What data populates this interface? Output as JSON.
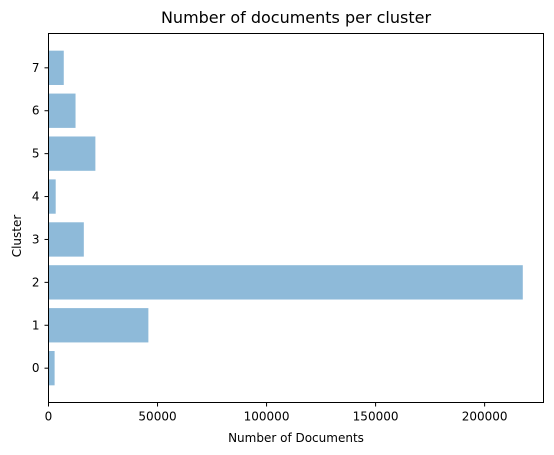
{
  "chart_data": {
    "type": "bar",
    "orientation": "horizontal",
    "title": "Number of documents per cluster",
    "xlabel": "Number of Documents",
    "ylabel": "Cluster",
    "categories": [
      "0",
      "1",
      "2",
      "3",
      "4",
      "5",
      "6",
      "7"
    ],
    "values": [
      2800,
      45800,
      217500,
      16200,
      3300,
      21500,
      12400,
      7000
    ],
    "xlim": [
      0,
      227000
    ],
    "xticks": [
      0,
      50000,
      100000,
      150000,
      200000
    ],
    "xtick_labels": [
      "0",
      "50000",
      "100000",
      "150000",
      "200000"
    ],
    "grid": false,
    "legend": "none",
    "bar_color": "#8ebad9"
  }
}
